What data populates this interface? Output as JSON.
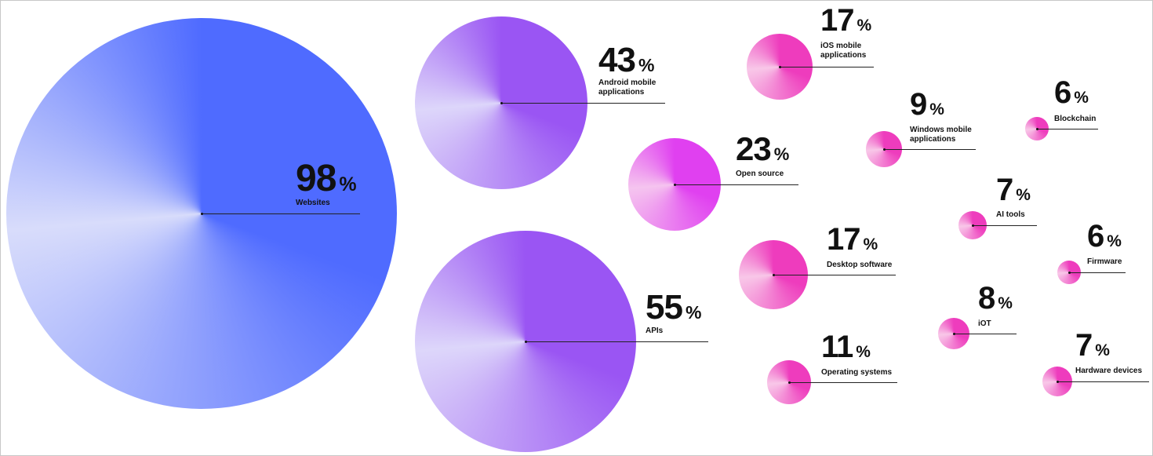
{
  "chart_data": {
    "type": "bubble",
    "title": "",
    "unit": "%",
    "items": [
      {
        "label": "Websites",
        "value": 98,
        "palette": "blue"
      },
      {
        "label": "Android mobile applications",
        "value": 43,
        "palette": "violet"
      },
      {
        "label": "APIs",
        "value": 55,
        "palette": "violet"
      },
      {
        "label": "Open source",
        "value": 23,
        "palette": "magenta"
      },
      {
        "label": "Desktop software",
        "value": 17,
        "palette": "pink"
      },
      {
        "label": "iOS mobile applications",
        "value": 17,
        "palette": "pink"
      },
      {
        "label": "Operating systems",
        "value": 11,
        "palette": "pink"
      },
      {
        "label": "Windows mobile applications",
        "value": 9,
        "palette": "pink"
      },
      {
        "label": "AI tools",
        "value": 7,
        "palette": "pink"
      },
      {
        "label": "iOT",
        "value": 8,
        "palette": "pink"
      },
      {
        "label": "Blockchain",
        "value": 6,
        "palette": "pink"
      },
      {
        "label": "Firmware",
        "value": 6,
        "palette": "pink"
      },
      {
        "label": "Hardware devices",
        "value": 7,
        "palette": "pink"
      }
    ],
    "palettes": {
      "blue": {
        "base": "#4f6bff",
        "light": "#d8dcfb"
      },
      "violet": {
        "base": "#9a55f3",
        "light": "#ddd6fa"
      },
      "magenta": {
        "base": "#e040f0",
        "light": "#f5c4ef"
      },
      "pink": {
        "base": "#ee3cbd",
        "light": "#f8c7e8"
      }
    }
  }
}
